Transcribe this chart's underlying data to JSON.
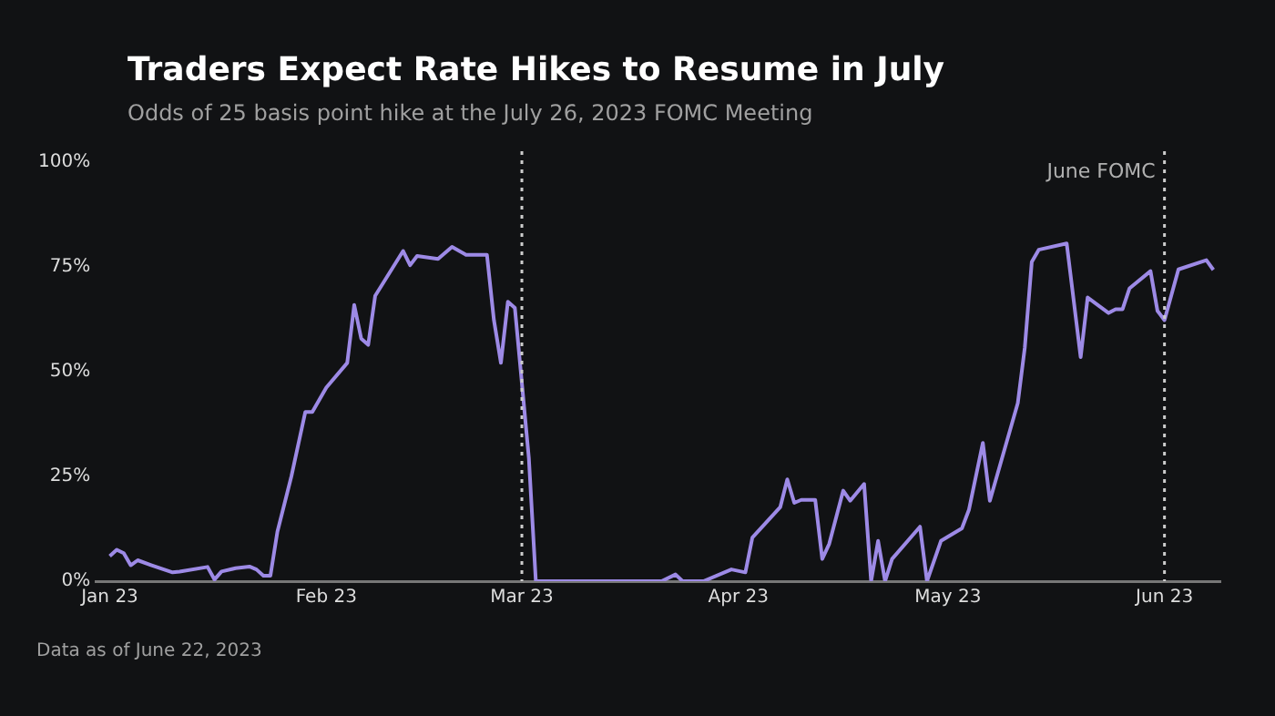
{
  "chart_data": {
    "type": "line",
    "title": "Traders Expect Rate Hikes to Resume in July",
    "subtitle": "Odds of 25 basis point hike at the July 26, 2023 FOMC Meeting",
    "annotations": [
      "Data as of June 22, 2023"
    ],
    "x": [
      "2023-01-01",
      "2023-01-02",
      "2023-01-03",
      "2023-01-04",
      "2023-01-05",
      "2023-01-07",
      "2023-01-10",
      "2023-01-11",
      "2023-01-15",
      "2023-01-16",
      "2023-01-17",
      "2023-01-19",
      "2023-01-21",
      "2023-01-22",
      "2023-01-23",
      "2023-01-24",
      "2023-01-25",
      "2023-01-27",
      "2023-01-29",
      "2023-01-30",
      "2023-02-01",
      "2023-02-04",
      "2023-02-05",
      "2023-02-06",
      "2023-02-07",
      "2023-02-08",
      "2023-02-12",
      "2023-02-13",
      "2023-02-14",
      "2023-02-17",
      "2023-02-19",
      "2023-02-21",
      "2023-02-24",
      "2023-02-25",
      "2023-02-26",
      "2023-02-27",
      "2023-02-28",
      "2023-03-02",
      "2023-03-03",
      "2023-03-21",
      "2023-03-23",
      "2023-03-24",
      "2023-03-27",
      "2023-03-31",
      "2023-04-02",
      "2023-04-03",
      "2023-04-07",
      "2023-04-08",
      "2023-04-09",
      "2023-04-10",
      "2023-04-12",
      "2023-04-13",
      "2023-04-14",
      "2023-04-16",
      "2023-04-17",
      "2023-04-19",
      "2023-04-20",
      "2023-04-21",
      "2023-04-22",
      "2023-04-23",
      "2023-04-27",
      "2023-04-28",
      "2023-04-30",
      "2023-05-03",
      "2023-05-04",
      "2023-05-06",
      "2023-05-07",
      "2023-05-11",
      "2023-05-12",
      "2023-05-13",
      "2023-05-14",
      "2023-05-18",
      "2023-05-20",
      "2023-05-21",
      "2023-05-24",
      "2023-05-25",
      "2023-05-26",
      "2023-05-27",
      "2023-05-30",
      "2023-05-31",
      "2023-06-01",
      "2023-06-03",
      "2023-06-07",
      "2023-06-08"
    ],
    "series": [
      {
        "color": "#9d8ae6",
        "values": [
          6,
          7.5,
          6.7,
          3.8,
          5,
          3.8,
          2.1,
          2.3,
          3.4,
          0.4,
          2.3,
          3.1,
          3.5,
          2.8,
          1.3,
          1.3,
          11.8,
          25,
          40.4,
          40.4,
          46.2,
          52.1,
          65.9,
          57.9,
          56.4,
          68.1,
          78.8,
          75.4,
          77.6,
          76.9,
          79.8,
          77.9,
          77.9,
          62.3,
          52.1,
          66.7,
          65.2,
          29.4,
          0,
          0,
          1.6,
          0,
          0,
          2.8,
          2.1,
          10.4,
          17.7,
          24.3,
          18.7,
          19.4,
          19.4,
          5.3,
          8.9,
          21.6,
          19.2,
          23.2,
          0,
          9.6,
          0,
          5.3,
          13,
          0,
          9.6,
          12.6,
          17,
          33,
          19.2,
          42.5,
          55.7,
          76.2,
          79.1,
          80.6,
          53.5,
          67.7,
          64,
          64.9,
          64.9,
          69.9,
          74,
          64.5,
          62.3,
          74.4,
          76.6,
          74.3
        ]
      }
    ],
    "xlim": [
      "2022-12-30",
      "2023-06-09"
    ],
    "xticks": [
      {
        "value": "2023-01-01",
        "label": "Jan 23"
      },
      {
        "value": "2023-02-01",
        "label": "Feb 23"
      },
      {
        "value": "2023-03-01",
        "label": "Mar 23"
      },
      {
        "value": "2023-04-01",
        "label": "Apr 23"
      },
      {
        "value": "2023-05-01",
        "label": "May 23"
      },
      {
        "value": "2023-06-01",
        "label": "Jun 23"
      }
    ],
    "ylim": [
      0,
      100
    ],
    "yticks": [
      {
        "value": 0,
        "label": "0%"
      },
      {
        "value": 25,
        "label": "25%"
      },
      {
        "value": 50,
        "label": "50%"
      },
      {
        "value": 75,
        "label": "75%"
      },
      {
        "value": 100,
        "label": "100%"
      }
    ],
    "ref_lines": [
      {
        "axis": "x",
        "value": "2023-03-01",
        "line_style": "dotted",
        "color": "#cccccc"
      },
      {
        "axis": "x",
        "value": "2023-06-01",
        "label": "June FOMC",
        "line_style": "dotted",
        "color": "#cccccc"
      }
    ],
    "grid": false,
    "legend": false
  }
}
